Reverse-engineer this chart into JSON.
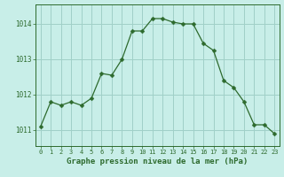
{
  "x": [
    0,
    1,
    2,
    3,
    4,
    5,
    6,
    7,
    8,
    9,
    10,
    11,
    12,
    13,
    14,
    15,
    16,
    17,
    18,
    19,
    20,
    21,
    22,
    23
  ],
  "y": [
    1011.1,
    1011.8,
    1011.7,
    1011.8,
    1011.7,
    1011.9,
    1012.6,
    1012.55,
    1013.0,
    1013.8,
    1013.8,
    1014.15,
    1014.15,
    1014.05,
    1014.0,
    1014.0,
    1013.45,
    1013.25,
    1012.4,
    1012.2,
    1011.8,
    1011.15,
    1011.15,
    1010.9
  ],
  "line_color": "#2d6a2d",
  "marker": "D",
  "marker_size": 2.5,
  "bg_color": "#c8eee8",
  "grid_color": "#a0d0c8",
  "xlabel": "Graphe pression niveau de la mer (hPa)",
  "xlabel_color": "#2d6a2d",
  "tick_color": "#2d6a2d",
  "ytick_labels": [
    "1011",
    "1012",
    "1013",
    "1014"
  ],
  "yticks": [
    1011,
    1012,
    1013,
    1014
  ],
  "ylim": [
    1010.55,
    1014.55
  ],
  "xlim": [
    -0.5,
    23.5
  ],
  "xticks": [
    0,
    1,
    2,
    3,
    4,
    5,
    6,
    7,
    8,
    9,
    10,
    11,
    12,
    13,
    14,
    15,
    16,
    17,
    18,
    19,
    20,
    21,
    22,
    23
  ]
}
